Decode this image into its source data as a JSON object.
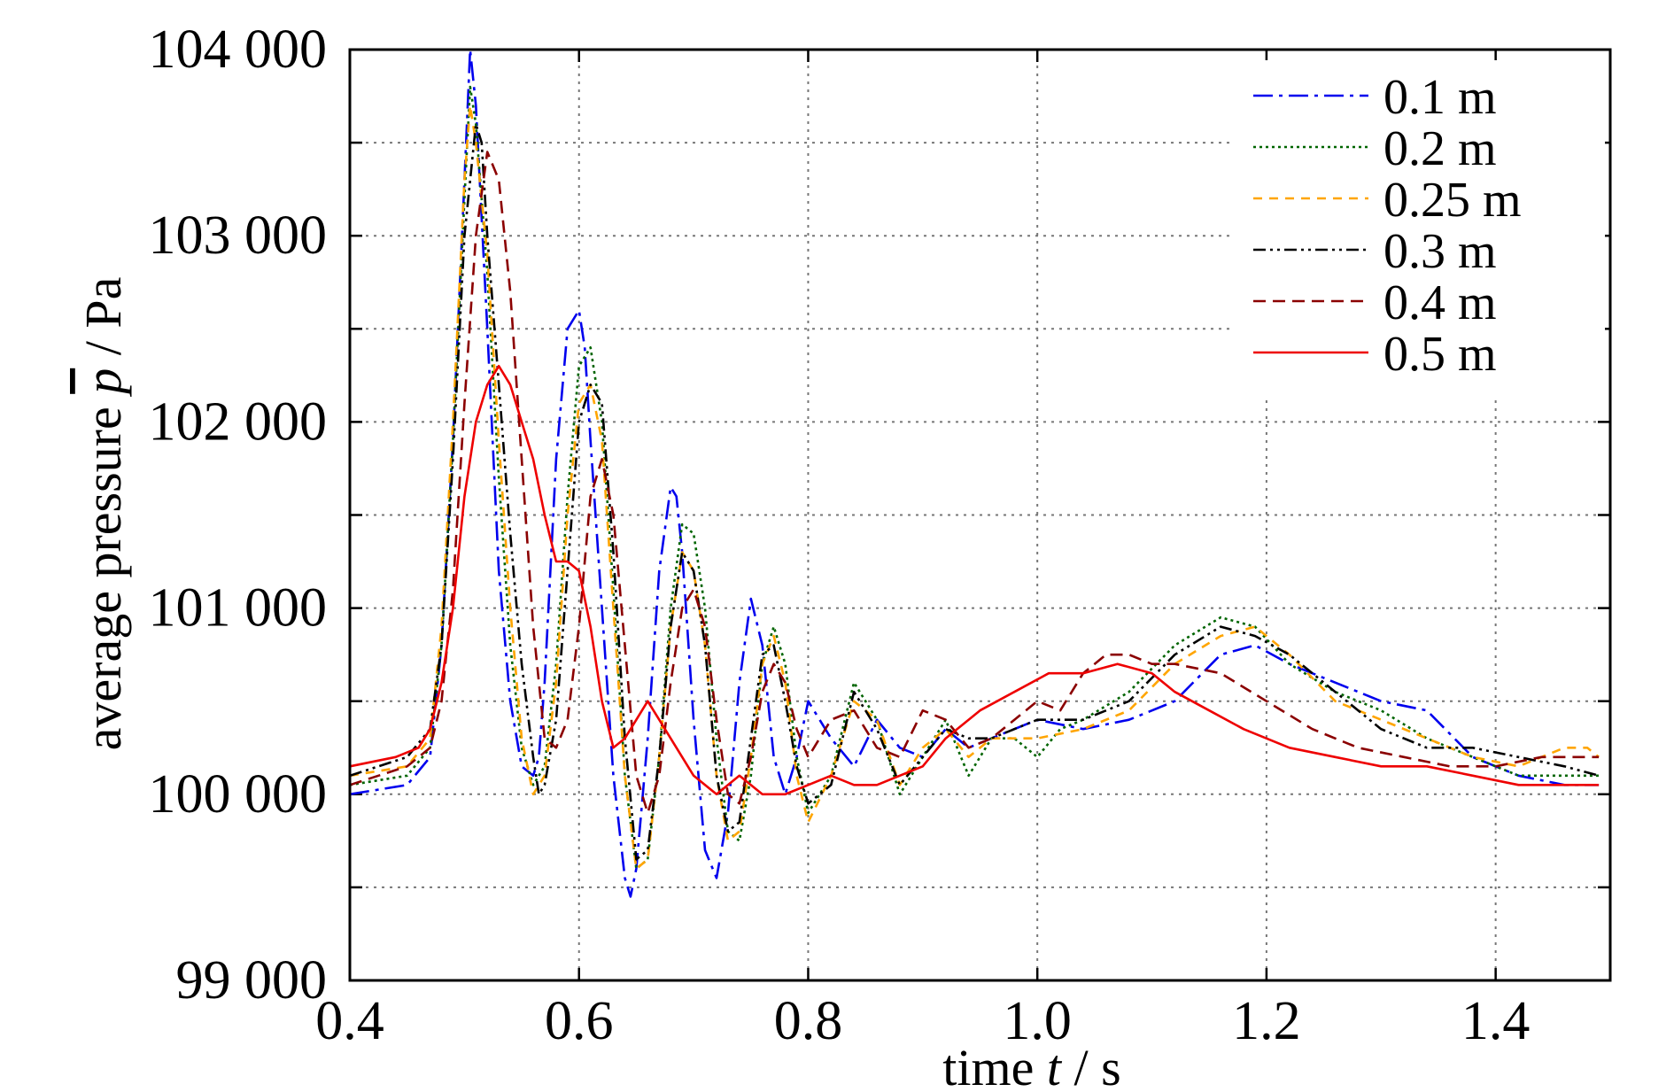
{
  "chart_data": {
    "type": "line",
    "xlabel_parts": [
      "time ",
      "t",
      " / s"
    ],
    "ylabel_parts": [
      "average pressure ",
      "p",
      " / Pa"
    ],
    "xlim": [
      0.4,
      1.5
    ],
    "ylim": [
      99000,
      104000
    ],
    "grid": true,
    "legend_position": "top-right",
    "xticks": [
      0.4,
      0.6,
      0.8,
      1.0,
      1.2,
      1.4
    ],
    "xtick_labels": [
      "0.4",
      "0.6",
      "0.8",
      "1.0",
      "1.2",
      "1.4"
    ],
    "yticks": [
      99000,
      100000,
      101000,
      102000,
      103000,
      104000
    ],
    "ytick_labels": [
      "99 000",
      "100 000",
      "101 000",
      "102 000",
      "103 000",
      "104 000"
    ],
    "series": [
      {
        "name": "0.1 m",
        "color": "#0000ee",
        "dash": "22 7 4 7",
        "x": [
          0.4,
          0.45,
          0.47,
          0.48,
          0.49,
          0.5,
          0.505,
          0.51,
          0.52,
          0.53,
          0.54,
          0.55,
          0.56,
          0.565,
          0.57,
          0.58,
          0.59,
          0.6,
          0.605,
          0.61,
          0.62,
          0.63,
          0.64,
          0.645,
          0.65,
          0.66,
          0.67,
          0.68,
          0.685,
          0.69,
          0.7,
          0.71,
          0.72,
          0.73,
          0.74,
          0.75,
          0.76,
          0.77,
          0.78,
          0.79,
          0.8,
          0.82,
          0.84,
          0.86,
          0.88,
          0.9,
          0.92,
          0.94,
          0.96,
          0.98,
          1.0,
          1.04,
          1.08,
          1.12,
          1.16,
          1.19,
          1.22,
          1.26,
          1.3,
          1.34,
          1.38,
          1.42,
          1.46,
          1.49
        ],
        "y": [
          100000,
          100050,
          100200,
          100800,
          101900,
          103300,
          104000,
          103700,
          102500,
          101200,
          100500,
          100150,
          100100,
          100200,
          100600,
          101800,
          102500,
          102600,
          102400,
          101900,
          101000,
          100100,
          99550,
          99450,
          99600,
          100300,
          101200,
          101650,
          101600,
          101300,
          100400,
          99700,
          99550,
          99900,
          100600,
          101050,
          100800,
          100200,
          100000,
          100200,
          100500,
          100300,
          100150,
          100400,
          100250,
          100200,
          100350,
          100250,
          100300,
          100350,
          100400,
          100350,
          100400,
          100500,
          100750,
          100800,
          100700,
          100600,
          100500,
          100450,
          100200,
          100100,
          100050,
          100050
        ]
      },
      {
        "name": "0.2 m",
        "color": "#006400",
        "dash": "3 4",
        "x": [
          0.4,
          0.45,
          0.47,
          0.48,
          0.49,
          0.5,
          0.505,
          0.51,
          0.52,
          0.53,
          0.54,
          0.55,
          0.56,
          0.57,
          0.58,
          0.59,
          0.6,
          0.61,
          0.62,
          0.63,
          0.64,
          0.65,
          0.66,
          0.67,
          0.68,
          0.69,
          0.7,
          0.71,
          0.72,
          0.73,
          0.74,
          0.75,
          0.76,
          0.77,
          0.78,
          0.79,
          0.8,
          0.82,
          0.84,
          0.86,
          0.88,
          0.9,
          0.92,
          0.94,
          0.96,
          0.98,
          1.0,
          1.02,
          1.04,
          1.08,
          1.12,
          1.16,
          1.19,
          1.22,
          1.26,
          1.3,
          1.34,
          1.38,
          1.42,
          1.46,
          1.49
        ],
        "y": [
          100050,
          100100,
          100250,
          100800,
          101900,
          103200,
          103800,
          103600,
          102800,
          101700,
          100800,
          100250,
          100050,
          100150,
          100700,
          101600,
          102300,
          102400,
          102000,
          101100,
          100100,
          99600,
          99650,
          100200,
          101000,
          101450,
          101400,
          101000,
          100300,
          99800,
          99750,
          100100,
          100700,
          100900,
          100700,
          100200,
          99900,
          100100,
          100600,
          100400,
          100000,
          100200,
          100400,
          100100,
          100300,
          100300,
          100200,
          100350,
          100400,
          100550,
          100800,
          100950,
          100900,
          100700,
          100550,
          100450,
          100300,
          100200,
          100100,
          100100,
          100100
        ]
      },
      {
        "name": "0.25 m",
        "color": "#ffa500",
        "dash": "10 8",
        "x": [
          0.4,
          0.45,
          0.47,
          0.48,
          0.49,
          0.5,
          0.505,
          0.51,
          0.52,
          0.53,
          0.54,
          0.55,
          0.56,
          0.57,
          0.58,
          0.59,
          0.6,
          0.61,
          0.62,
          0.63,
          0.64,
          0.65,
          0.66,
          0.67,
          0.68,
          0.69,
          0.7,
          0.71,
          0.72,
          0.73,
          0.74,
          0.75,
          0.76,
          0.77,
          0.78,
          0.79,
          0.8,
          0.82,
          0.84,
          0.86,
          0.88,
          0.9,
          0.92,
          0.94,
          0.96,
          0.98,
          1.0,
          1.04,
          1.08,
          1.12,
          1.16,
          1.19,
          1.22,
          1.26,
          1.3,
          1.34,
          1.38,
          1.42,
          1.46,
          1.48,
          1.49
        ],
        "y": [
          100100,
          100150,
          100300,
          100900,
          102000,
          103300,
          103700,
          103500,
          102900,
          101900,
          101000,
          100300,
          100000,
          100100,
          100600,
          101500,
          102100,
          102200,
          101900,
          101000,
          100100,
          99600,
          99650,
          100200,
          100900,
          101300,
          101200,
          100800,
          100100,
          99750,
          99800,
          100200,
          100700,
          100850,
          100600,
          100100,
          99850,
          100100,
          100500,
          100400,
          100050,
          100250,
          100350,
          100200,
          100300,
          100300,
          100300,
          100350,
          100450,
          100700,
          100850,
          100900,
          100750,
          100500,
          100400,
          100300,
          100200,
          100150,
          100250,
          100250,
          100200
        ]
      },
      {
        "name": "0.3 m",
        "color": "#000000",
        "dash": "14 5 3 5 3 5",
        "x": [
          0.4,
          0.45,
          0.47,
          0.48,
          0.49,
          0.5,
          0.51,
          0.515,
          0.52,
          0.53,
          0.54,
          0.55,
          0.56,
          0.565,
          0.57,
          0.58,
          0.59,
          0.6,
          0.61,
          0.62,
          0.63,
          0.64,
          0.65,
          0.66,
          0.67,
          0.68,
          0.69,
          0.7,
          0.71,
          0.72,
          0.73,
          0.74,
          0.75,
          0.76,
          0.77,
          0.78,
          0.79,
          0.8,
          0.82,
          0.84,
          0.86,
          0.88,
          0.9,
          0.92,
          0.94,
          0.96,
          0.98,
          1.0,
          1.04,
          1.08,
          1.12,
          1.16,
          1.19,
          1.22,
          1.26,
          1.3,
          1.34,
          1.38,
          1.42,
          1.46,
          1.49
        ],
        "y": [
          100100,
          100200,
          100350,
          100800,
          101800,
          103000,
          103600,
          103500,
          103000,
          102200,
          101400,
          100700,
          100200,
          100000,
          100050,
          100400,
          101200,
          102000,
          102200,
          102100,
          101300,
          100300,
          99650,
          99700,
          100200,
          100900,
          101300,
          101200,
          100800,
          100100,
          99800,
          99850,
          100300,
          100750,
          100800,
          100500,
          100150,
          99950,
          100050,
          100550,
          100350,
          100050,
          100200,
          100350,
          100300,
          100300,
          100350,
          100400,
          100400,
          100500,
          100750,
          100900,
          100850,
          100750,
          100550,
          100350,
          100250,
          100250,
          100200,
          100150,
          100100
        ]
      },
      {
        "name": "0.4 m",
        "color": "#8b0000",
        "dash": "14 8",
        "x": [
          0.4,
          0.45,
          0.47,
          0.48,
          0.49,
          0.5,
          0.51,
          0.52,
          0.53,
          0.54,
          0.55,
          0.56,
          0.57,
          0.58,
          0.59,
          0.6,
          0.61,
          0.62,
          0.63,
          0.64,
          0.65,
          0.66,
          0.67,
          0.68,
          0.69,
          0.7,
          0.71,
          0.72,
          0.73,
          0.74,
          0.75,
          0.76,
          0.77,
          0.78,
          0.79,
          0.8,
          0.81,
          0.82,
          0.84,
          0.86,
          0.88,
          0.9,
          0.92,
          0.94,
          0.96,
          0.98,
          1.0,
          1.02,
          1.04,
          1.06,
          1.08,
          1.1,
          1.12,
          1.16,
          1.2,
          1.24,
          1.28,
          1.32,
          1.36,
          1.4,
          1.44,
          1.49
        ],
        "y": [
          100050,
          100150,
          100250,
          100500,
          101100,
          102100,
          103000,
          103450,
          103300,
          102700,
          101800,
          100900,
          100300,
          100250,
          100400,
          100900,
          101600,
          101800,
          101500,
          100800,
          100100,
          99900,
          100100,
          100600,
          101000,
          101100,
          100900,
          100400,
          100000,
          99950,
          100200,
          100550,
          100700,
          100600,
          100350,
          100200,
          100300,
          100400,
          100450,
          100250,
          100200,
          100450,
          100400,
          100250,
          100300,
          100400,
          100500,
          100450,
          100650,
          100750,
          100750,
          100700,
          100700,
          100650,
          100500,
          100350,
          100250,
          100200,
          100150,
          100150,
          100200,
          100200
        ]
      },
      {
        "name": "0.5 m",
        "color": "#ee0000",
        "dash": "",
        "x": [
          0.4,
          0.44,
          0.46,
          0.47,
          0.48,
          0.49,
          0.5,
          0.51,
          0.52,
          0.53,
          0.54,
          0.55,
          0.56,
          0.57,
          0.58,
          0.59,
          0.6,
          0.61,
          0.62,
          0.63,
          0.64,
          0.65,
          0.66,
          0.67,
          0.68,
          0.69,
          0.7,
          0.72,
          0.74,
          0.76,
          0.78,
          0.8,
          0.82,
          0.84,
          0.86,
          0.88,
          0.9,
          0.92,
          0.95,
          0.98,
          1.01,
          1.04,
          1.07,
          1.1,
          1.12,
          1.15,
          1.18,
          1.22,
          1.26,
          1.3,
          1.34,
          1.38,
          1.42,
          1.46,
          1.49
        ],
        "y": [
          100150,
          100200,
          100250,
          100350,
          100600,
          101000,
          101600,
          102000,
          102200,
          102300,
          102200,
          102000,
          101800,
          101500,
          101250,
          101250,
          101200,
          100900,
          100500,
          100250,
          100300,
          100400,
          100500,
          100400,
          100300,
          100200,
          100100,
          100000,
          100100,
          100000,
          100000,
          100050,
          100100,
          100050,
          100050,
          100100,
          100150,
          100300,
          100450,
          100550,
          100650,
          100650,
          100700,
          100650,
          100550,
          100450,
          100350,
          100250,
          100200,
          100150,
          100150,
          100100,
          100050,
          100050,
          100050
        ]
      }
    ]
  }
}
